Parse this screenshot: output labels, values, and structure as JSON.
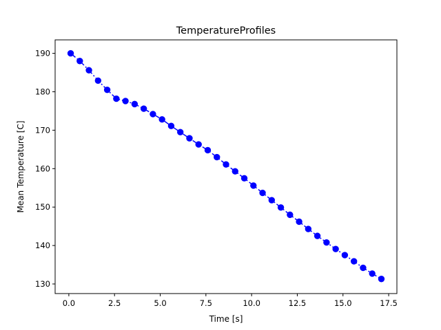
{
  "chart_data": {
    "type": "line",
    "title": "TemperatureProfiles",
    "xlabel": "Time [s]",
    "ylabel": "Mean Temperature [C]",
    "xlim": [
      -0.75,
      17.95
    ],
    "ylim": [
      127.5,
      193.5
    ],
    "xticks": [
      0.0,
      2.5,
      5.0,
      7.5,
      10.0,
      12.5,
      15.0,
      17.5
    ],
    "xtick_labels": [
      "0.0",
      "2.5",
      "5.0",
      "7.5",
      "10.0",
      "12.5",
      "15.0",
      "17.5"
    ],
    "yticks": [
      130,
      140,
      150,
      160,
      170,
      180,
      190
    ],
    "ytick_labels": [
      "130",
      "140",
      "150",
      "160",
      "170",
      "180",
      "190"
    ],
    "grid": false,
    "series": [
      {
        "color": "#0000ff",
        "line_style": "dashdot",
        "marker": "circle",
        "x": [
          0.1,
          0.6,
          1.1,
          1.6,
          2.1,
          2.6,
          3.1,
          3.6,
          4.1,
          4.6,
          5.1,
          5.6,
          6.1,
          6.6,
          7.1,
          7.6,
          8.1,
          8.6,
          9.1,
          9.6,
          10.1,
          10.6,
          11.1,
          11.6,
          12.1,
          12.6,
          13.1,
          13.6,
          14.1,
          14.6,
          15.1,
          15.6,
          16.1,
          16.6,
          17.1
        ],
        "y": [
          190.0,
          188.0,
          185.6,
          182.9,
          180.5,
          178.2,
          177.6,
          176.8,
          175.6,
          174.2,
          172.8,
          171.1,
          169.5,
          167.9,
          166.3,
          164.8,
          163.0,
          161.1,
          159.3,
          157.5,
          155.6,
          153.7,
          151.8,
          149.9,
          148.0,
          146.2,
          144.3,
          142.5,
          140.8,
          139.1,
          137.5,
          135.9,
          134.2,
          132.7,
          131.3
        ]
      }
    ]
  }
}
